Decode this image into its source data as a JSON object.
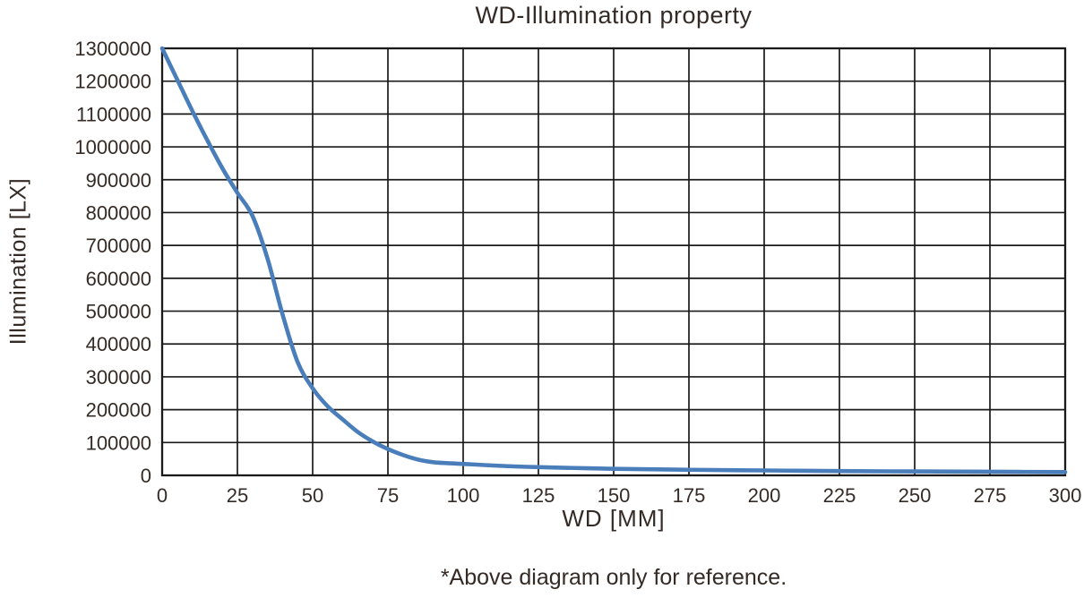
{
  "title": "WD-Illumination property",
  "footnote": "*Above diagram only for reference.",
  "colors": {
    "line": "#4a7ebb",
    "grid": "#1a1a1a",
    "text": "#352b26",
    "background": "#ffffff"
  },
  "chart_data": {
    "type": "line",
    "title": "WD-Illumination property",
    "xlabel": "WD [MM]",
    "ylabel": "Illumination [LX]",
    "xlim": [
      0,
      300
    ],
    "ylim": [
      0,
      1300000
    ],
    "x_ticks": [
      0,
      25,
      50,
      75,
      100,
      125,
      150,
      175,
      200,
      225,
      250,
      275,
      300
    ],
    "y_ticks": [
      0,
      100000,
      200000,
      300000,
      400000,
      500000,
      600000,
      700000,
      800000,
      900000,
      1000000,
      1100000,
      1200000,
      1300000
    ],
    "grid": "both",
    "legend_position": "none",
    "series": [
      {
        "name": "Illumination",
        "color": "#4a7ebb",
        "x": [
          0,
          5,
          10,
          15,
          20,
          25,
          30,
          35,
          40,
          45,
          50,
          55,
          60,
          65,
          70,
          75,
          80,
          85,
          90,
          95,
          100,
          110,
          125,
          150,
          175,
          200,
          225,
          250,
          275,
          300
        ],
        "y": [
          1300000,
          1205000,
          1110000,
          1020000,
          935000,
          860000,
          790000,
          660000,
          490000,
          345000,
          265000,
          210000,
          170000,
          132000,
          103000,
          80000,
          62000,
          48000,
          40000,
          37000,
          35000,
          30000,
          25000,
          20000,
          17000,
          15000,
          13000,
          12000,
          11000,
          10000
        ]
      }
    ]
  }
}
